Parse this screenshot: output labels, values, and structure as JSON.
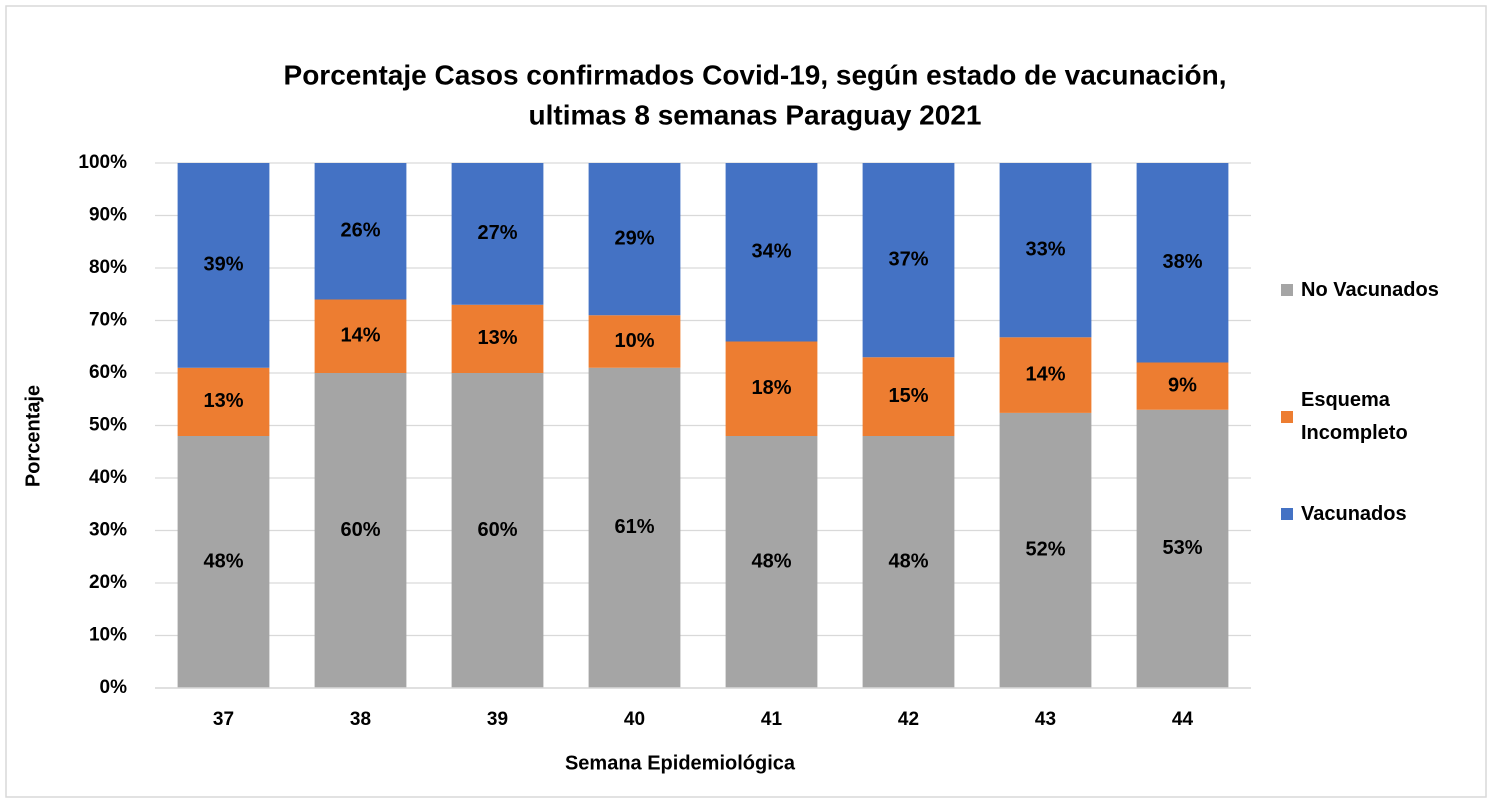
{
  "chart_data": {
    "type": "stacked_bar",
    "title": [
      "Porcentaje Casos confirmados Covid-19, según estado de vacunación,",
      "ultimas 8 semanas Paraguay 2021"
    ],
    "x_label": "Semana Epidemiológica",
    "y_label": "Porcentaje",
    "categories": [
      "37",
      "38",
      "39",
      "40",
      "41",
      "42",
      "43",
      "44"
    ],
    "series": [
      {
        "name": "No Vacunados",
        "color": "#a5a5a5",
        "values": [
          48,
          60,
          60,
          61,
          48,
          48,
          52.4,
          53
        ],
        "value_labels": [
          "48%",
          "60%",
          "60%",
          "61%",
          "48%",
          "48%",
          "52%",
          "53%"
        ]
      },
      {
        "name": "Esquema Incompleto",
        "color": "#ed7d31",
        "values": [
          13,
          14,
          13,
          10,
          18,
          15,
          14.4,
          9
        ],
        "value_labels": [
          "13%",
          "14%",
          "13%",
          "10%",
          "18%",
          "15%",
          "14%",
          "9%"
        ]
      },
      {
        "name": "Vacunados",
        "color": "#4472c4",
        "values": [
          39,
          26,
          27,
          29,
          34,
          37,
          33.2,
          38
        ],
        "value_labels": [
          "39%",
          "26%",
          "27%",
          "29%",
          "34%",
          "37%",
          "33%",
          "38%"
        ]
      }
    ],
    "ylim": [
      0,
      100
    ],
    "yticks": [
      {
        "value": 0,
        "label": "0%"
      },
      {
        "value": 10,
        "label": "10%"
      },
      {
        "value": 20,
        "label": "20%"
      },
      {
        "value": 30,
        "label": "30%"
      },
      {
        "value": 40,
        "label": "40%"
      },
      {
        "value": 50,
        "label": "50%"
      },
      {
        "value": 60,
        "label": "60%"
      },
      {
        "value": 70,
        "label": "70%"
      },
      {
        "value": 80,
        "label": "80%"
      },
      {
        "value": 90,
        "label": "90%"
      },
      {
        "value": 100,
        "label": "100%"
      }
    ],
    "grid": true,
    "legend": "right"
  }
}
